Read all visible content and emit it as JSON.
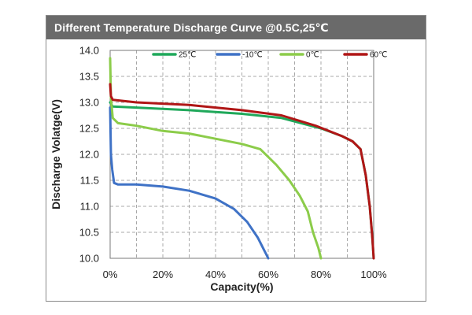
{
  "header": {
    "title": "Different Temperature Discharge Curve @0.5C,25℃"
  },
  "chart_data": {
    "type": "line",
    "title": "Different Temperature Discharge Curve @0.5C,25℃",
    "xlabel": "Capacity(%)",
    "ylabel": "Discharge Volatge(V)",
    "xlim": [
      0,
      100
    ],
    "ylim": [
      10.0,
      14.0
    ],
    "x_ticks": [
      0,
      20,
      40,
      60,
      80,
      100
    ],
    "x_tick_labels": [
      "0%",
      "20%",
      "40%",
      "60%",
      "80%",
      "100%"
    ],
    "y_ticks": [
      10.0,
      10.5,
      11.0,
      11.5,
      12.0,
      12.5,
      13.0,
      13.5,
      14.0
    ],
    "y_tick_labels": [
      "10.0",
      "10.5",
      "11.0",
      "11.5",
      "12.0",
      "12.5",
      "13.0",
      "13.5",
      "14.0"
    ],
    "grid": true,
    "legend_position": "top",
    "series": [
      {
        "name": "25℃",
        "color": "#1fa85a",
        "x": [
          0,
          1,
          10,
          30,
          50,
          65,
          80,
          88,
          92,
          95,
          97,
          98.5,
          99.5,
          100
        ],
        "y": [
          13.0,
          12.92,
          12.9,
          12.85,
          12.78,
          12.7,
          12.5,
          12.35,
          12.25,
          12.1,
          11.6,
          11.0,
          10.4,
          10.0
        ]
      },
      {
        "name": "-10℃",
        "color": "#3f72c6",
        "x": [
          0,
          0.3,
          0.8,
          1.5,
          3,
          10,
          20,
          30,
          40,
          47,
          52,
          56,
          58,
          60
        ],
        "y": [
          12.9,
          12.0,
          11.7,
          11.45,
          11.42,
          11.42,
          11.38,
          11.3,
          11.15,
          10.95,
          10.7,
          10.4,
          10.2,
          10.0
        ]
      },
      {
        "name": "0℃",
        "color": "#8ccc4a",
        "x": [
          0,
          0.3,
          1,
          3,
          10,
          20,
          30,
          40,
          50,
          57,
          63,
          68,
          72,
          75,
          77,
          79,
          80
        ],
        "y": [
          13.85,
          13.1,
          12.7,
          12.6,
          12.55,
          12.45,
          12.4,
          12.3,
          12.2,
          12.1,
          11.8,
          11.5,
          11.2,
          10.9,
          10.5,
          10.2,
          10.0
        ]
      },
      {
        "name": "60℃",
        "color": "#b01616",
        "x": [
          0,
          0.3,
          1,
          10,
          30,
          50,
          65,
          78,
          88,
          92,
          95,
          97,
          98.5,
          99.5,
          100
        ],
        "y": [
          13.35,
          13.12,
          13.05,
          13.0,
          12.95,
          12.85,
          12.75,
          12.55,
          12.35,
          12.25,
          12.1,
          11.6,
          11.0,
          10.4,
          10.0
        ]
      }
    ]
  }
}
